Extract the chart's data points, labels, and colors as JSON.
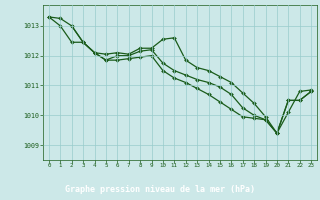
{
  "title": "Graphe pression niveau de la mer (hPa)",
  "plot_bg": "#cce8e8",
  "fig_bg": "#cce8e8",
  "label_bg": "#2d6b2d",
  "label_fg": "#ffffff",
  "line_color": "#1a5c1a",
  "marker_color": "#1a5c1a",
  "grid_color": "#99cccc",
  "xlim": [
    -0.5,
    23.5
  ],
  "ylim": [
    1008.5,
    1013.7
  ],
  "yticks": [
    1009,
    1010,
    1011,
    1012,
    1013
  ],
  "xticks": [
    0,
    1,
    2,
    3,
    4,
    5,
    6,
    7,
    8,
    9,
    10,
    11,
    12,
    13,
    14,
    15,
    16,
    17,
    18,
    19,
    20,
    21,
    22,
    23
  ],
  "series1": {
    "x": [
      0,
      1,
      2,
      3,
      4,
      5,
      6,
      7,
      8,
      9,
      10,
      11,
      12,
      13,
      14,
      15,
      16,
      17,
      18,
      19,
      20,
      21,
      22,
      23
    ],
    "y": [
      1013.3,
      1013.25,
      1013.0,
      1012.45,
      1012.1,
      1012.05,
      1012.1,
      1012.05,
      1012.25,
      1012.25,
      1012.55,
      1012.6,
      1011.85,
      1011.6,
      1011.5,
      1011.3,
      1011.1,
      1010.75,
      1010.4,
      1009.95,
      1009.4,
      1010.1,
      1010.8,
      1010.85
    ]
  },
  "series2": {
    "x": [
      0,
      1,
      2,
      3,
      4,
      5,
      6,
      7,
      8,
      9,
      10,
      11,
      12,
      13,
      14,
      15,
      16,
      17,
      18,
      19,
      20,
      21,
      22,
      23
    ],
    "y": [
      1013.3,
      1013.0,
      1012.45,
      1012.45,
      1012.1,
      1011.85,
      1012.0,
      1012.0,
      1012.15,
      1012.2,
      1011.75,
      1011.5,
      1011.35,
      1011.2,
      1011.1,
      1010.95,
      1010.7,
      1010.25,
      1010.0,
      1009.85,
      1009.4,
      1010.5,
      1010.5,
      1010.8
    ]
  },
  "series3": {
    "x": [
      2,
      3,
      4,
      5,
      6,
      7,
      8,
      9,
      10,
      11,
      12,
      13,
      14,
      15,
      16,
      17,
      18,
      19,
      20,
      21,
      22,
      23
    ],
    "y": [
      1013.0,
      1012.45,
      1012.1,
      1011.85,
      1011.85,
      1011.9,
      1011.95,
      1012.0,
      1011.5,
      1011.25,
      1011.1,
      1010.9,
      1010.7,
      1010.45,
      1010.2,
      1009.95,
      1009.9,
      1009.85,
      1009.4,
      1010.5,
      1010.5,
      1010.8
    ]
  }
}
